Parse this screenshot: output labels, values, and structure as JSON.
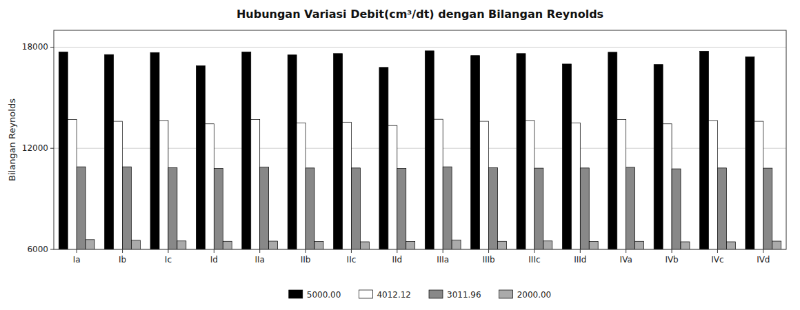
{
  "chart_data": {
    "type": "bar",
    "title": "Hubungan Variasi Debit(cm³/dt) dengan Bilangan Reynolds",
    "y_label": "Bilangan Reynolds",
    "categories": [
      "Ia",
      "Ib",
      "Ic",
      "Id",
      "IIa",
      "IIb",
      "IIc",
      "IId",
      "IIIa",
      "IIIb",
      "IIIc",
      "IIId",
      "IVa",
      "IVb",
      "IVc",
      "IVd"
    ],
    "series": [
      {
        "name": "5000.00",
        "color": "#000000",
        "values": [
          17720,
          17560,
          17680,
          16900,
          17720,
          17540,
          17620,
          16800,
          17780,
          17500,
          17620,
          17000,
          17700,
          16970,
          17760,
          17420
        ]
      },
      {
        "name": "4012.12",
        "color": "#ffffff",
        "values": [
          13700,
          13600,
          13650,
          13450,
          13700,
          13500,
          13550,
          13350,
          13720,
          13600,
          13650,
          13500,
          13700,
          13450,
          13650,
          13600
        ]
      },
      {
        "name": "3011.96",
        "color": "#888888",
        "values": [
          10900,
          10900,
          10850,
          10800,
          10880,
          10830,
          10830,
          10800,
          10900,
          10840,
          10820,
          10830,
          10870,
          10780,
          10830,
          10820
        ]
      },
      {
        "name": "2000.00",
        "color": "#aaaaaa",
        "values": [
          6580,
          6540,
          6500,
          6480,
          6490,
          6470,
          6450,
          6470,
          6560,
          6480,
          6500,
          6470,
          6480,
          6450,
          6450,
          6490
        ]
      }
    ],
    "ylim": [
      6000,
      19000
    ],
    "yticks": [
      6000,
      12000,
      18000
    ],
    "grid": true,
    "legend": "bottom"
  }
}
